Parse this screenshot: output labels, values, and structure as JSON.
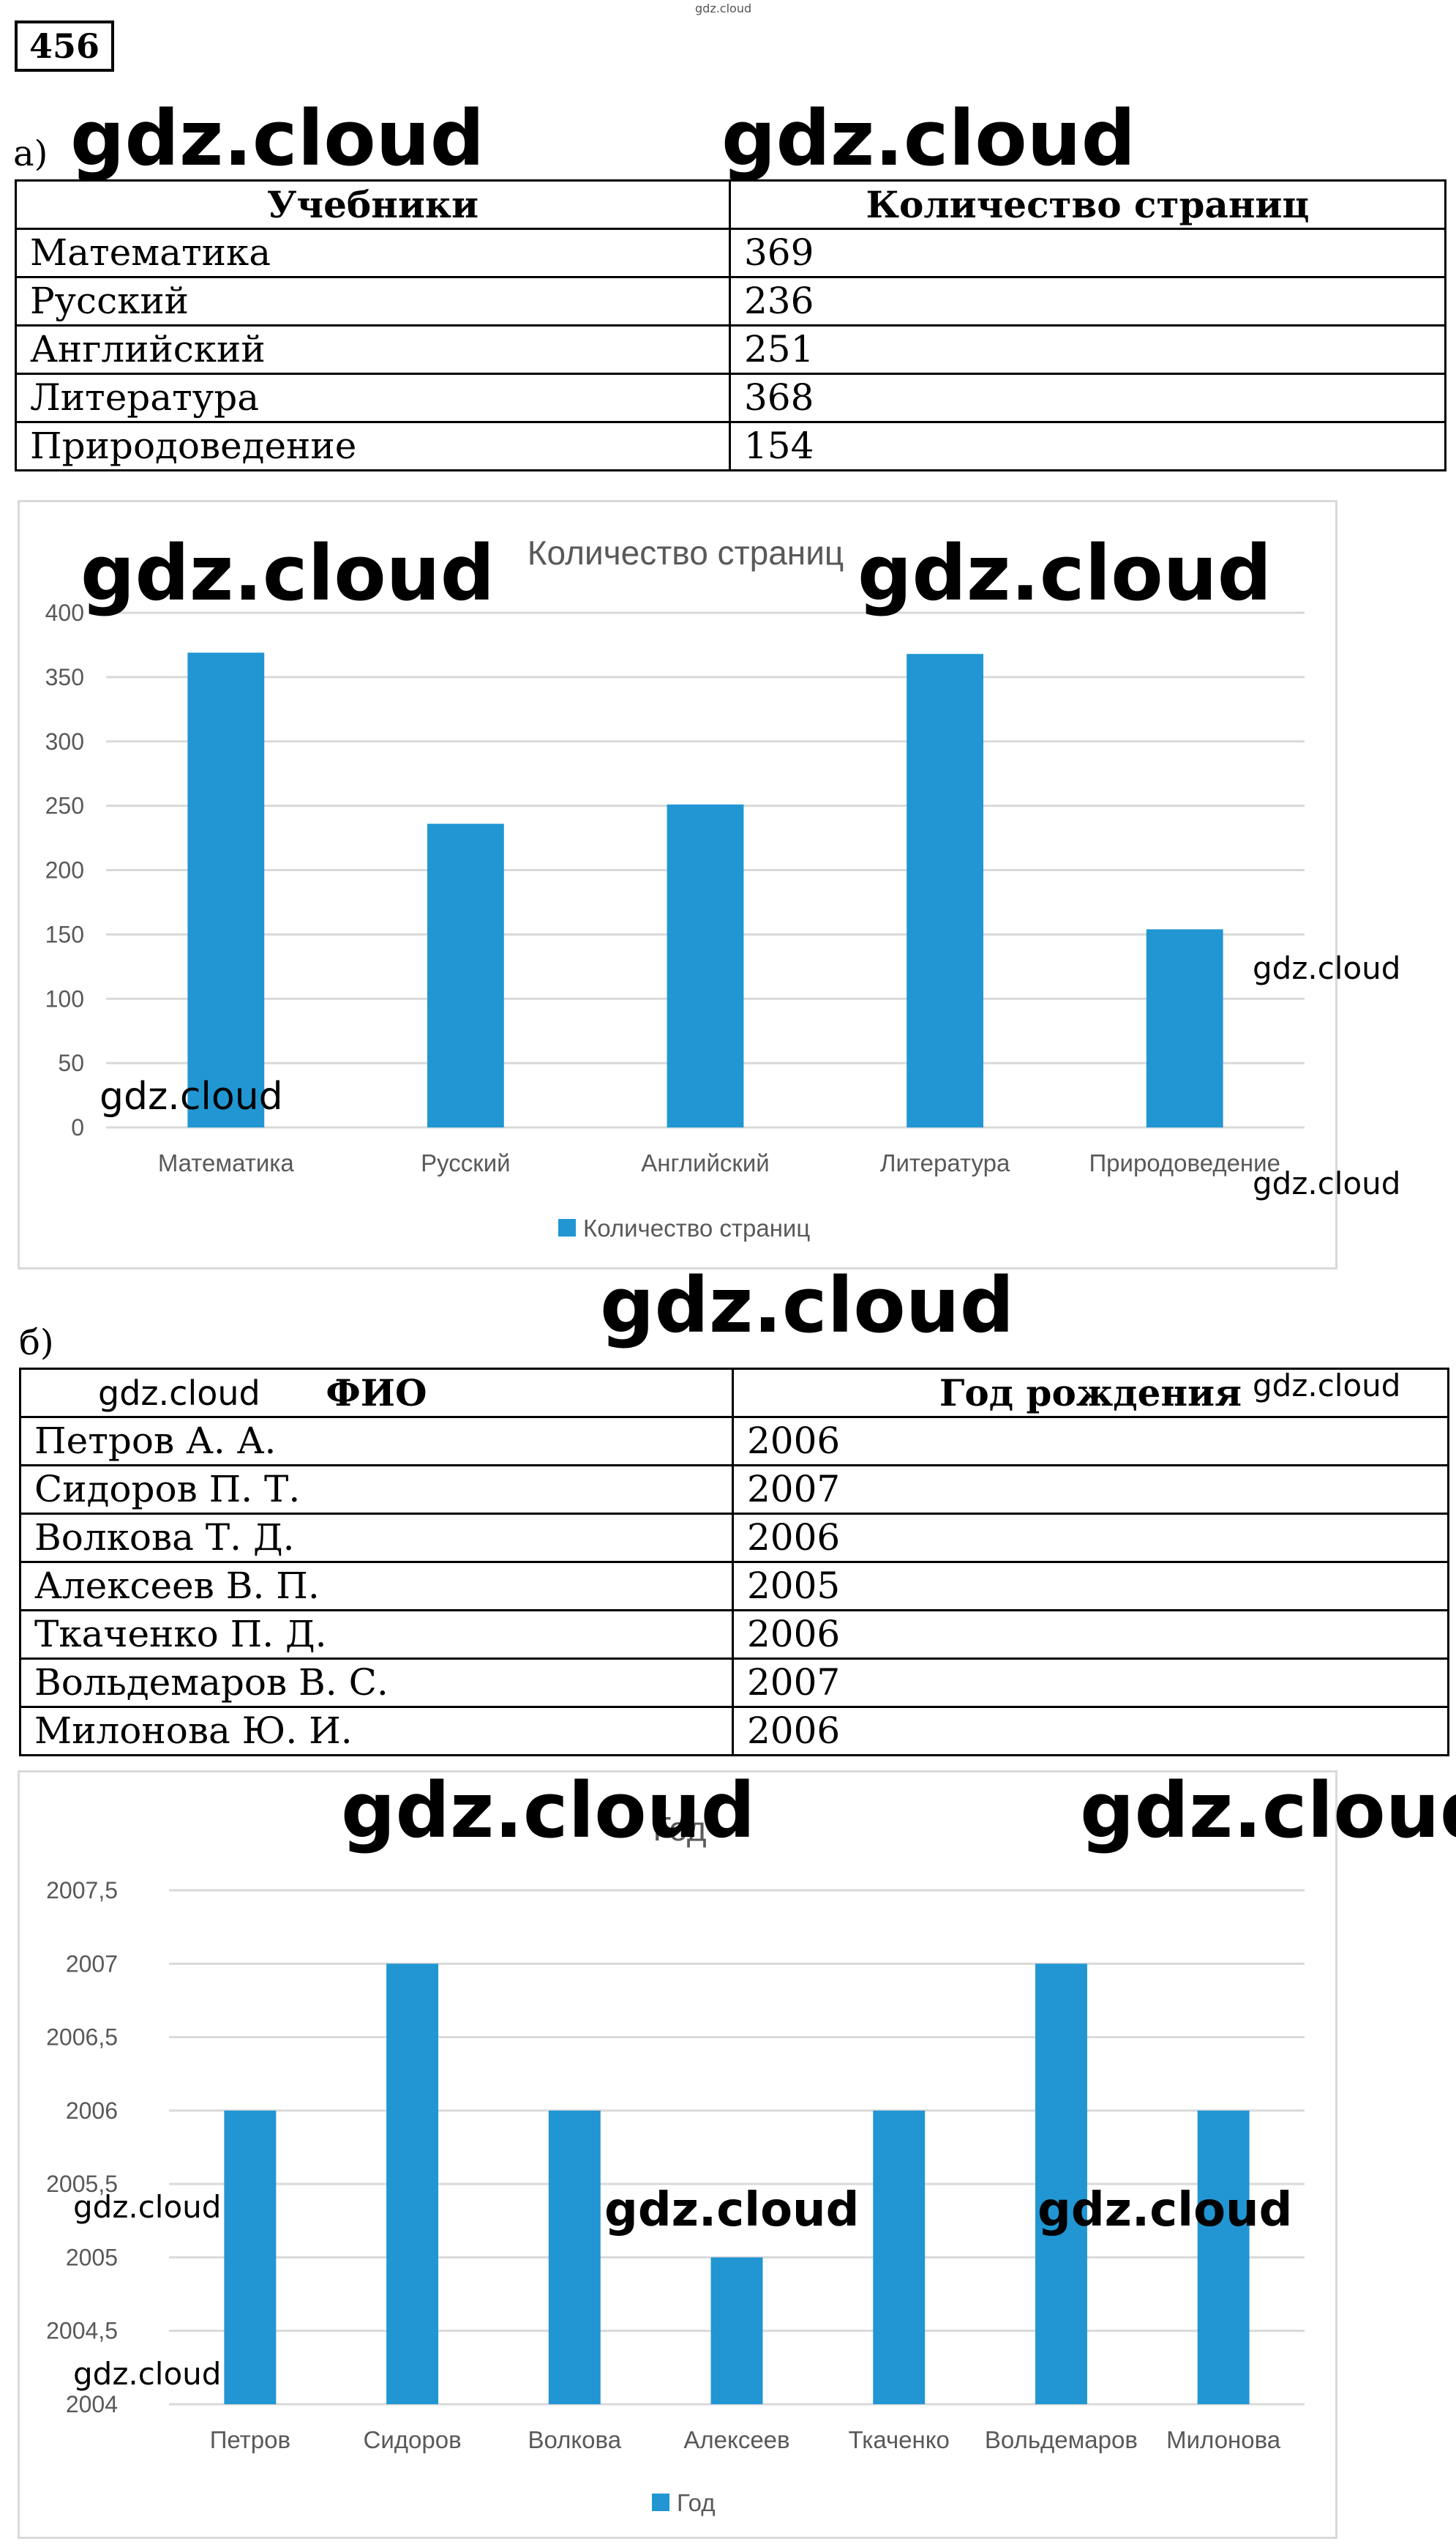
{
  "watermark": "gdz.cloud",
  "task_number": "456",
  "part_a": {
    "label": "а)",
    "table": {
      "headers": [
        "Учебники",
        "Количество страниц"
      ],
      "rows": [
        [
          "Математика",
          "369"
        ],
        [
          "Русский",
          "236"
        ],
        [
          "Английский",
          "251"
        ],
        [
          "Литература",
          "368"
        ],
        [
          "Природоведение",
          "154"
        ]
      ]
    }
  },
  "part_b": {
    "label": "б)",
    "table": {
      "headers": [
        "ФИО",
        "Год рождения"
      ],
      "rows": [
        [
          "Петров А. А.",
          "2006"
        ],
        [
          "Сидоров П. Т.",
          "2007"
        ],
        [
          "Волкова Т. Д.",
          "2006"
        ],
        [
          "Алексеев В. П.",
          "2005"
        ],
        [
          "Ткаченко П. Д.",
          "2006"
        ],
        [
          "Вольдемаров В. С.",
          "2007"
        ],
        [
          "Милонова Ю. И.",
          "2006"
        ]
      ]
    }
  },
  "chart_data": [
    {
      "type": "bar",
      "title": "Количество страниц",
      "categories": [
        "Математика",
        "Русский",
        "Английский",
        "Литература",
        "Природоведение"
      ],
      "series": [
        {
          "name": "Количество страниц",
          "values": [
            369,
            236,
            251,
            368,
            154
          ]
        }
      ],
      "ylim": [
        0,
        400
      ],
      "yticks": [
        0,
        50,
        100,
        150,
        200,
        250,
        300,
        350,
        400
      ],
      "ytick_labels": [
        "0",
        "50",
        "100",
        "150",
        "200",
        "250",
        "300",
        "350",
        "400"
      ],
      "grid": true,
      "legend": "bottom",
      "color": "#2196d3"
    },
    {
      "type": "bar",
      "title": "Год",
      "categories": [
        "Петров",
        "Сидоров",
        "Волкова",
        "Алексеев",
        "Ткаченко",
        "Вольдемаров",
        "Милонова"
      ],
      "series": [
        {
          "name": "Год",
          "values": [
            2006,
            2007,
            2006,
            2005,
            2006,
            2007,
            2006
          ]
        }
      ],
      "ylim": [
        2004,
        2007.5
      ],
      "yticks": [
        2004,
        2004.5,
        2005,
        2005.5,
        2006,
        2006.5,
        2007,
        2007.5
      ],
      "ytick_labels": [
        "2004",
        "2004,5",
        "2005",
        "2005,5",
        "2006",
        "2006,5",
        "2007",
        "2007,5"
      ],
      "grid": true,
      "legend": "bottom",
      "color": "#2196d3"
    }
  ]
}
